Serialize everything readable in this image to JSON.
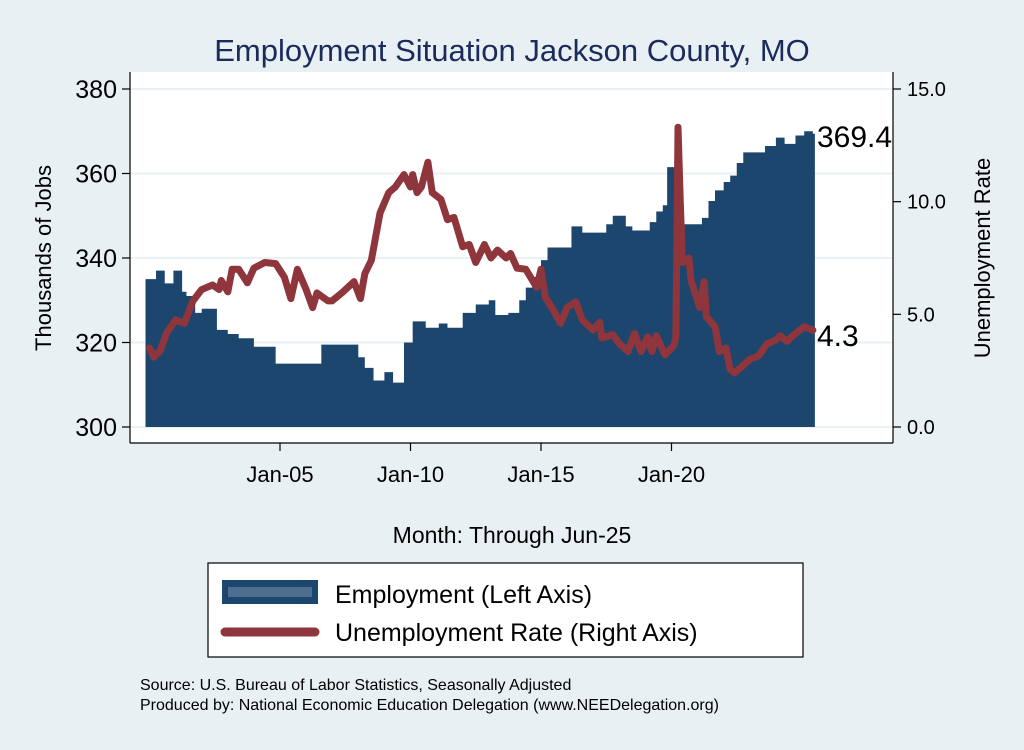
{
  "chart_data": {
    "type": "area+line",
    "title": "Employment Situation Jackson  County, MO",
    "xlabel": "Month: Through Jun-25",
    "ylabel_left": "Thousands of Jobs",
    "ylabel_right": "Unemployment Rate",
    "ylim_left": [
      300,
      380
    ],
    "ylim_right": [
      0,
      15
    ],
    "left_ticks": [
      "300",
      "320",
      "340",
      "360",
      "380"
    ],
    "right_ticks": [
      "0.0",
      "5.0",
      "10.0",
      "15.0"
    ],
    "x_ticks": [
      "Jan-05",
      "Jan-10",
      "Jan-15",
      "Jan-20"
    ],
    "grid": true,
    "legend_position": "bottom",
    "colors": {
      "employment": "#1c466e",
      "unemployment": "#8f353c",
      "background": "#e9f0f3",
      "plot": "#ffffff",
      "title": "#1a2b5c"
    },
    "end_labels": {
      "employment": "369.4",
      "unemployment": "4.3"
    },
    "series": [
      {
        "name": "Employment (Left Axis)",
        "type": "area",
        "axis": "left",
        "points": [
          [
            "2000-01",
            335
          ],
          [
            "2000-04",
            337
          ],
          [
            "2000-08",
            334
          ],
          [
            "2000-12",
            337
          ],
          [
            "2001-04",
            332
          ],
          [
            "2001-06",
            331
          ],
          [
            "2001-10",
            327
          ],
          [
            "2002-01",
            328
          ],
          [
            "2002-08",
            323
          ],
          [
            "2003-01",
            322
          ],
          [
            "2003-06",
            321
          ],
          [
            "2004-01",
            319
          ],
          [
            "2004-11",
            315
          ],
          [
            "2006-04",
            315
          ],
          [
            "2006-08",
            319.5
          ],
          [
            "2007-08",
            319.5
          ],
          [
            "2008-01",
            316.5
          ],
          [
            "2008-04",
            314
          ],
          [
            "2008-08",
            311
          ],
          [
            "2009-01",
            313
          ],
          [
            "2009-05",
            310.5
          ],
          [
            "2009-10",
            320
          ],
          [
            "2010-02",
            325
          ],
          [
            "2010-08",
            323.5
          ],
          [
            "2011-02",
            324.5
          ],
          [
            "2011-06",
            323.5
          ],
          [
            "2012-01",
            327
          ],
          [
            "2012-07",
            329
          ],
          [
            "2013-01",
            330
          ],
          [
            "2013-04",
            326.5
          ],
          [
            "2013-10",
            327
          ],
          [
            "2014-03",
            330
          ],
          [
            "2014-06",
            333
          ],
          [
            "2014-09",
            335.5
          ],
          [
            "2015-01",
            339.5
          ],
          [
            "2015-04",
            342.5
          ],
          [
            "2016-03",
            347.5
          ],
          [
            "2016-08",
            346
          ],
          [
            "2017-07",
            348
          ],
          [
            "2017-10",
            350
          ],
          [
            "2018-04",
            347.5
          ],
          [
            "2018-07",
            346.5
          ],
          [
            "2019-03",
            348.5
          ],
          [
            "2019-06",
            351
          ],
          [
            "2019-09",
            352.5
          ],
          [
            "2019-11",
            361.5
          ],
          [
            "2020-02",
            361.5
          ],
          [
            "2020-04",
            346.5
          ],
          [
            "2020-07",
            348
          ],
          [
            "2021-03",
            349.5
          ],
          [
            "2021-06",
            353.5
          ],
          [
            "2021-09",
            356
          ],
          [
            "2022-01",
            358
          ],
          [
            "2022-04",
            359.5
          ],
          [
            "2022-07",
            362.5
          ],
          [
            "2022-10",
            365
          ],
          [
            "2023-04",
            365
          ],
          [
            "2023-08",
            366.5
          ],
          [
            "2024-01",
            368.5
          ],
          [
            "2024-05",
            367
          ],
          [
            "2024-10",
            369
          ],
          [
            "2025-02",
            370
          ],
          [
            "2025-06",
            369.4
          ]
        ]
      },
      {
        "name": "Unemployment Rate (Right Axis)",
        "type": "line",
        "axis": "right",
        "points": [
          [
            "2000-01",
            3.5
          ],
          [
            "2000-03",
            3.1
          ],
          [
            "2000-06",
            3.4
          ],
          [
            "2000-09",
            4.2
          ],
          [
            "2001-01",
            4.75
          ],
          [
            "2001-05",
            4.6
          ],
          [
            "2001-09",
            5.6
          ],
          [
            "2002-01",
            6.1
          ],
          [
            "2002-06",
            6.3
          ],
          [
            "2002-09",
            6.1
          ],
          [
            "2002-10",
            6.5
          ],
          [
            "2003-01",
            6.0
          ],
          [
            "2003-03",
            7.0
          ],
          [
            "2003-06",
            7.0
          ],
          [
            "2003-10",
            6.4
          ],
          [
            "2004-01",
            7.05
          ],
          [
            "2004-06",
            7.3
          ],
          [
            "2004-11",
            7.25
          ],
          [
            "2005-03",
            6.65
          ],
          [
            "2005-06",
            5.7
          ],
          [
            "2005-09",
            7.0
          ],
          [
            "2006-01",
            6.1
          ],
          [
            "2006-04",
            5.3
          ],
          [
            "2006-06",
            5.95
          ],
          [
            "2006-11",
            5.6
          ],
          [
            "2007-01",
            5.6
          ],
          [
            "2007-06",
            6.0
          ],
          [
            "2007-11",
            6.45
          ],
          [
            "2008-02",
            5.7
          ],
          [
            "2008-04",
            6.8
          ],
          [
            "2008-07",
            7.4
          ],
          [
            "2008-11",
            9.5
          ],
          [
            "2009-03",
            10.4
          ],
          [
            "2009-06",
            10.65
          ],
          [
            "2009-10",
            11.2
          ],
          [
            "2010-01",
            10.65
          ],
          [
            "2010-02",
            11.2
          ],
          [
            "2010-04",
            10.4
          ],
          [
            "2010-06",
            10.65
          ],
          [
            "2010-09",
            11.75
          ],
          [
            "2010-11",
            10.4
          ],
          [
            "2011-03",
            10.1
          ],
          [
            "2011-06",
            9.2
          ],
          [
            "2011-09",
            9.3
          ],
          [
            "2012-01",
            8.0
          ],
          [
            "2012-04",
            8.1
          ],
          [
            "2012-07",
            7.3
          ],
          [
            "2012-11",
            8.1
          ],
          [
            "2013-02",
            7.5
          ],
          [
            "2013-05",
            7.85
          ],
          [
            "2013-09",
            7.5
          ],
          [
            "2013-11",
            7.7
          ],
          [
            "2014-02",
            7.05
          ],
          [
            "2014-06",
            7.0
          ],
          [
            "2014-11",
            6.2
          ],
          [
            "2015-01",
            7.0
          ],
          [
            "2015-03",
            5.75
          ],
          [
            "2015-06",
            5.3
          ],
          [
            "2015-10",
            4.6
          ],
          [
            "2016-01",
            5.3
          ],
          [
            "2016-05",
            5.55
          ],
          [
            "2016-08",
            4.75
          ],
          [
            "2017-01",
            4.3
          ],
          [
            "2017-04",
            4.65
          ],
          [
            "2017-05",
            3.95
          ],
          [
            "2017-10",
            4.1
          ],
          [
            "2018-01",
            3.7
          ],
          [
            "2018-05",
            3.35
          ],
          [
            "2018-08",
            4.15
          ],
          [
            "2018-11",
            3.35
          ],
          [
            "2019-02",
            4.0
          ],
          [
            "2019-04",
            3.35
          ],
          [
            "2019-06",
            4.05
          ],
          [
            "2019-10",
            3.2
          ],
          [
            "2020-02",
            3.6
          ],
          [
            "2020-03",
            4.0
          ],
          [
            "2020-04",
            13.3
          ],
          [
            "2020-05",
            10.1
          ],
          [
            "2020-06",
            7.3
          ],
          [
            "2020-09",
            7.5
          ],
          [
            "2020-10",
            6.5
          ],
          [
            "2021-02",
            5.3
          ],
          [
            "2021-04",
            6.45
          ],
          [
            "2021-05",
            4.9
          ],
          [
            "2021-09",
            4.45
          ],
          [
            "2021-11",
            3.35
          ],
          [
            "2022-02",
            3.5
          ],
          [
            "2022-04",
            2.55
          ],
          [
            "2022-06",
            2.4
          ],
          [
            "2022-09",
            2.65
          ],
          [
            "2023-01",
            3.0
          ],
          [
            "2023-05",
            3.15
          ],
          [
            "2023-09",
            3.7
          ],
          [
            "2024-01",
            3.85
          ],
          [
            "2024-03",
            4.05
          ],
          [
            "2024-06",
            3.8
          ],
          [
            "2024-10",
            4.15
          ],
          [
            "2025-02",
            4.45
          ],
          [
            "2025-06",
            4.3
          ]
        ]
      }
    ]
  },
  "source": {
    "line1": "Source: U.S. Bureau of Labor Statistics, Seasonally Adjusted",
    "line2": "Produced by: National Economic Education Delegation (www.NEEDelegation.org)"
  }
}
